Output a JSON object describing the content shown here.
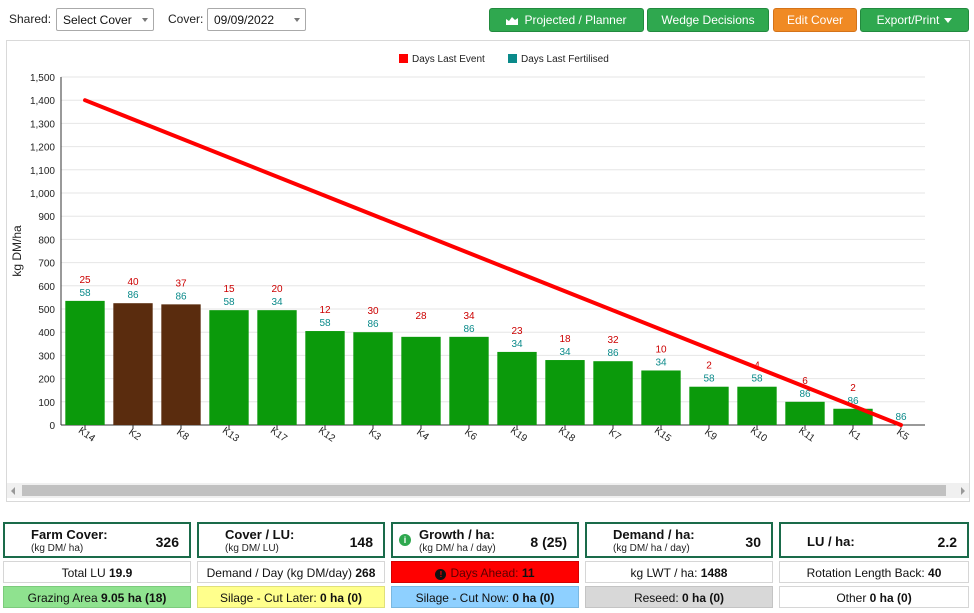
{
  "toolbar": {
    "shared_label": "Shared:",
    "shared_value": "Select Cover",
    "cover_label": "Cover:",
    "cover_value": "09/09/2022",
    "projected_label": "Projected / Planner",
    "wedge_label": "Wedge Decisions",
    "edit_label": "Edit Cover",
    "export_label": "Export/Print",
    "colors": {
      "green": "#2fa84f",
      "orange": "#f08a24"
    }
  },
  "chart_data": {
    "type": "bar",
    "ylabel": "kg DM/ha",
    "ylim": [
      0,
      1500
    ],
    "yticks": [
      "0",
      "100",
      "200",
      "300",
      "400",
      "500",
      "600",
      "700",
      "800",
      "900",
      "1,000",
      "1,100",
      "1,200",
      "1,300",
      "1,400",
      "1,500"
    ],
    "categories": [
      "K14",
      "K2",
      "K8",
      "K13",
      "K17",
      "K12",
      "K3",
      "K4",
      "K6",
      "K19",
      "K18",
      "K7",
      "K15",
      "K9",
      "K10",
      "K11",
      "K1",
      "K5"
    ],
    "values": [
      535,
      525,
      520,
      495,
      495,
      405,
      400,
      380,
      380,
      315,
      280,
      275,
      235,
      165,
      165,
      100,
      70,
      0
    ],
    "bar_colors": [
      "#0b9a0b",
      "#5a2c0e",
      "#5a2c0e",
      "#0b9a0b",
      "#0b9a0b",
      "#0b9a0b",
      "#0b9a0b",
      "#0b9a0b",
      "#0b9a0b",
      "#0b9a0b",
      "#0b9a0b",
      "#0b9a0b",
      "#0b9a0b",
      "#0b9a0b",
      "#0b9a0b",
      "#0b9a0b",
      "#0b9a0b",
      "#0b9a0b"
    ],
    "days_last_event": [
      "25",
      "40",
      "37",
      "15",
      "20",
      "12",
      "30",
      "28",
      "34",
      "23",
      "18",
      "32",
      "10",
      "2",
      "4",
      "6",
      "2",
      ""
    ],
    "days_last_fertilised": [
      "58",
      "86",
      "86",
      "58",
      "34",
      "58",
      "86",
      "",
      "86",
      "34",
      "34",
      "86",
      "34",
      "58",
      "58",
      "86",
      "86",
      "86"
    ],
    "target_line": {
      "start": 1400,
      "end": 0
    },
    "legend": [
      {
        "label": "Days Last Event",
        "color": "#ff0000"
      },
      {
        "label": "Days Last Fertilised",
        "color": "#0a8a8a"
      }
    ],
    "legend_placement": "top-center",
    "grid": true
  },
  "stats": {
    "farm_cover": {
      "title": "Farm Cover:",
      "unit": "(kg DM/ ha)",
      "value": "326"
    },
    "cover_lu": {
      "title": "Cover / LU:",
      "unit": "(kg DM/ LU)",
      "value": "148"
    },
    "growth": {
      "title": "Growth / ha:",
      "unit": "(kg DM/ ha / day)",
      "value": "8 (25)",
      "info": "i"
    },
    "demand": {
      "title": "Demand / ha:",
      "unit": "(kg DM/ ha / day)",
      "value": "30"
    },
    "lu_ha": {
      "title": "LU / ha:",
      "value": "2.2"
    }
  },
  "row1": {
    "total_lu_label": "Total LU",
    "total_lu_value": "19.9",
    "demand_day_label": "Demand / Day (kg DM/day)",
    "demand_day_value": "268",
    "days_ahead_label": "Days Ahead:",
    "days_ahead_value": "11",
    "days_ahead_icon": "!",
    "lwt_label": "kg LWT / ha:",
    "lwt_value": "1488",
    "rotation_label": "Rotation Length Back:",
    "rotation_value": "40"
  },
  "row2": {
    "grazing_label": "Grazing Area",
    "grazing_value": "9.05 ha (18)",
    "silage_later_label": "Silage - Cut Later:",
    "silage_later_value": "0 ha (0)",
    "silage_now_label": "Silage - Cut Now:",
    "silage_now_value": "0 ha (0)",
    "reseed_label": "Reseed:",
    "reseed_value": "0 ha (0)",
    "other_label": "Other",
    "other_value": "0 ha (0)"
  }
}
